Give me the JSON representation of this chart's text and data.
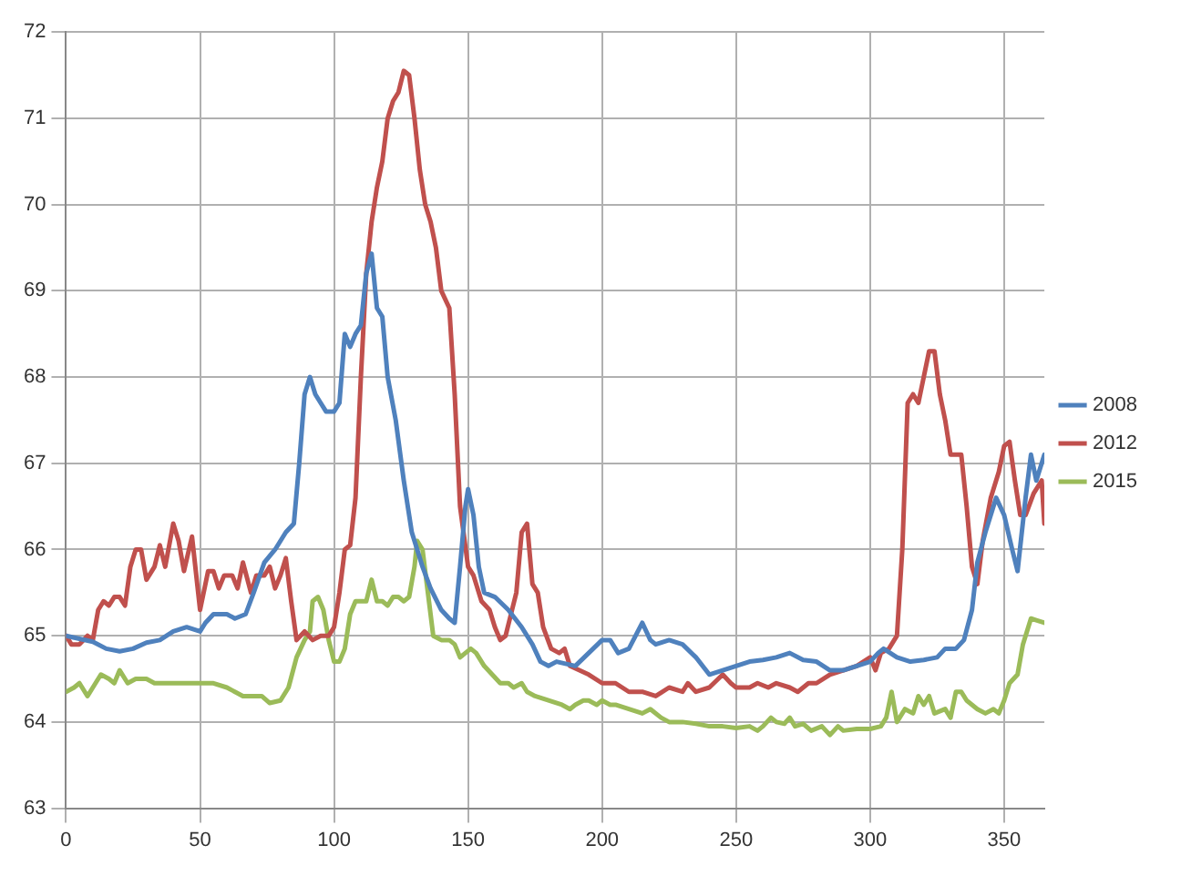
{
  "chart_data": {
    "type": "line",
    "xlim": [
      0,
      365
    ],
    "xticks": [
      0,
      50,
      100,
      150,
      200,
      250,
      300,
      350
    ],
    "ylim": [
      63,
      72
    ],
    "yticks": [
      63,
      64,
      65,
      66,
      67,
      68,
      69,
      70,
      71,
      72
    ],
    "grid": true,
    "legend": "right",
    "marker": "none",
    "line_style": "solid",
    "series": [
      {
        "name": "2008",
        "color": "#4f81bd",
        "x": [
          0,
          10,
          15,
          20,
          25,
          30,
          35,
          40,
          45,
          50,
          52,
          55,
          60,
          63,
          67,
          70,
          74,
          78,
          82,
          85,
          87,
          89,
          91,
          93,
          95,
          97,
          100,
          102,
          104,
          106,
          108,
          110,
          112,
          114,
          116,
          118,
          120,
          123,
          126,
          129,
          131,
          133,
          136,
          140,
          143,
          145,
          147,
          149,
          150,
          152,
          154,
          156,
          160,
          165,
          170,
          174,
          177,
          180,
          183,
          190,
          195,
          200,
          203,
          206,
          210,
          215,
          218,
          220,
          225,
          230,
          235,
          240,
          245,
          250,
          255,
          260,
          265,
          270,
          275,
          280,
          285,
          290,
          295,
          300,
          303,
          305,
          310,
          315,
          320,
          325,
          328,
          332,
          335,
          338,
          340,
          343,
          347,
          350,
          353,
          355,
          358,
          360,
          362,
          365
        ],
        "values": [
          65.0,
          64.93,
          64.85,
          64.82,
          64.85,
          64.92,
          64.95,
          65.05,
          65.1,
          65.05,
          65.15,
          65.25,
          65.25,
          65.2,
          65.25,
          65.5,
          65.85,
          66.0,
          66.2,
          66.3,
          67.0,
          67.8,
          68.0,
          67.8,
          67.7,
          67.6,
          67.6,
          67.7,
          68.5,
          68.35,
          68.5,
          68.6,
          69.2,
          69.43,
          68.8,
          68.7,
          68.0,
          67.5,
          66.8,
          66.2,
          66.0,
          65.8,
          65.55,
          65.3,
          65.2,
          65.15,
          65.8,
          66.5,
          66.7,
          66.4,
          65.8,
          65.5,
          65.45,
          65.3,
          65.1,
          64.9,
          64.7,
          64.65,
          64.7,
          64.65,
          64.8,
          64.95,
          64.95,
          64.8,
          64.85,
          65.15,
          64.95,
          64.9,
          64.95,
          64.9,
          64.75,
          64.55,
          64.6,
          64.65,
          64.7,
          64.72,
          64.75,
          64.8,
          64.72,
          64.7,
          64.6,
          64.6,
          64.65,
          64.7,
          64.8,
          64.85,
          64.75,
          64.7,
          64.72,
          64.75,
          64.85,
          64.85,
          64.95,
          65.3,
          65.85,
          66.2,
          66.6,
          66.4,
          66.0,
          65.75,
          66.6,
          67.1,
          66.8,
          67.1
        ]
      },
      {
        "name": "2012",
        "color": "#c0504d",
        "x": [
          0,
          2,
          5,
          8,
          10,
          12,
          14,
          16,
          18,
          20,
          22,
          24,
          26,
          28,
          30,
          33,
          35,
          37,
          40,
          42,
          44,
          47,
          50,
          53,
          55,
          57,
          59,
          62,
          64,
          66,
          69,
          71,
          74,
          76,
          78,
          80,
          82,
          84,
          86,
          89,
          92,
          95,
          98,
          100,
          102,
          104,
          106,
          108,
          110,
          112,
          114,
          116,
          118,
          120,
          122,
          124,
          126,
          128,
          130,
          132,
          134,
          136,
          138,
          140,
          143,
          145,
          147,
          150,
          152,
          155,
          158,
          160,
          162,
          164,
          166,
          168,
          170,
          172,
          174,
          176,
          178,
          181,
          184,
          186,
          188,
          195,
          200,
          205,
          210,
          215,
          220,
          225,
          230,
          232,
          235,
          240,
          245,
          248,
          250,
          255,
          258,
          262,
          265,
          270,
          273,
          277,
          280,
          285,
          290,
          295,
          300,
          302,
          304,
          307,
          310,
          312,
          314,
          316,
          318,
          320,
          322,
          324,
          326,
          328,
          330,
          334,
          336,
          338,
          340,
          342,
          345,
          348,
          350,
          352,
          354,
          356,
          358,
          361,
          364,
          365
        ],
        "values": [
          65.0,
          64.9,
          64.9,
          65.0,
          64.95,
          65.3,
          65.4,
          65.35,
          65.45,
          65.45,
          65.35,
          65.8,
          66.0,
          66.0,
          65.65,
          65.8,
          66.05,
          65.8,
          66.3,
          66.1,
          65.75,
          66.15,
          65.3,
          65.75,
          65.75,
          65.55,
          65.7,
          65.7,
          65.55,
          65.85,
          65.5,
          65.7,
          65.7,
          65.8,
          65.55,
          65.7,
          65.9,
          65.4,
          64.95,
          65.05,
          64.95,
          65.0,
          65.0,
          65.1,
          65.5,
          66.0,
          66.05,
          66.6,
          68.0,
          69.2,
          69.8,
          70.2,
          70.5,
          71.0,
          71.2,
          71.3,
          71.55,
          71.5,
          71.0,
          70.4,
          70.0,
          69.8,
          69.5,
          69.0,
          68.8,
          67.8,
          66.5,
          65.8,
          65.7,
          65.4,
          65.3,
          65.1,
          64.95,
          65.0,
          65.25,
          65.5,
          66.2,
          66.3,
          65.6,
          65.5,
          65.1,
          64.85,
          64.8,
          64.85,
          64.65,
          64.55,
          64.45,
          64.45,
          64.35,
          64.35,
          64.3,
          64.4,
          64.35,
          64.45,
          64.35,
          64.4,
          64.55,
          64.45,
          64.4,
          64.4,
          64.45,
          64.4,
          64.45,
          64.4,
          64.35,
          64.45,
          64.45,
          64.55,
          64.6,
          64.65,
          64.75,
          64.6,
          64.8,
          64.85,
          65.0,
          66.0,
          67.7,
          67.8,
          67.7,
          68.0,
          68.3,
          68.3,
          67.8,
          67.5,
          67.1,
          67.1,
          66.5,
          65.8,
          65.6,
          66.1,
          66.6,
          66.9,
          67.2,
          67.25,
          66.8,
          66.4,
          66.4,
          66.65,
          66.8,
          66.3
        ]
      },
      {
        "name": "2015",
        "color": "#9bbb59",
        "x": [
          0,
          3,
          5,
          8,
          10,
          13,
          16,
          18,
          20,
          23,
          26,
          30,
          33,
          36,
          40,
          45,
          50,
          55,
          60,
          63,
          66,
          70,
          73,
          76,
          80,
          83,
          86,
          89,
          91,
          92,
          94,
          96,
          98,
          100,
          102,
          104,
          106,
          108,
          110,
          112,
          114,
          116,
          118,
          120,
          122,
          124,
          126,
          128,
          130,
          131,
          133,
          135,
          137,
          140,
          143,
          145,
          147,
          149,
          151,
          153,
          156,
          159,
          162,
          165,
          167,
          170,
          172,
          175,
          180,
          185,
          188,
          190,
          193,
          195,
          198,
          200,
          203,
          205,
          210,
          215,
          218,
          222,
          225,
          230,
          235,
          240,
          245,
          250,
          255,
          258,
          260,
          263,
          265,
          268,
          270,
          272,
          275,
          278,
          282,
          285,
          288,
          290,
          295,
          300,
          304,
          306,
          308,
          310,
          313,
          316,
          318,
          320,
          322,
          324,
          328,
          330,
          332,
          334,
          336,
          340,
          343,
          346,
          348,
          350,
          352,
          355,
          357,
          360,
          362,
          365
        ],
        "values": [
          64.35,
          64.4,
          64.45,
          64.3,
          64.4,
          64.55,
          64.5,
          64.45,
          64.6,
          64.45,
          64.5,
          64.5,
          64.45,
          64.45,
          64.45,
          64.45,
          64.45,
          64.45,
          64.4,
          64.35,
          64.3,
          64.3,
          64.3,
          64.22,
          64.25,
          64.4,
          64.75,
          64.95,
          65.05,
          65.4,
          65.45,
          65.3,
          64.95,
          64.7,
          64.7,
          64.85,
          65.25,
          65.4,
          65.4,
          65.4,
          65.65,
          65.4,
          65.4,
          65.35,
          65.45,
          65.45,
          65.4,
          65.45,
          65.8,
          66.1,
          66.0,
          65.5,
          65.0,
          64.95,
          64.95,
          64.9,
          64.75,
          64.8,
          64.85,
          64.8,
          64.65,
          64.55,
          64.45,
          64.45,
          64.4,
          64.45,
          64.35,
          64.3,
          64.25,
          64.2,
          64.15,
          64.2,
          64.25,
          64.25,
          64.2,
          64.25,
          64.2,
          64.2,
          64.15,
          64.1,
          64.15,
          64.05,
          64.0,
          64.0,
          63.98,
          63.95,
          63.95,
          63.93,
          63.95,
          63.9,
          63.95,
          64.05,
          64.0,
          63.98,
          64.05,
          63.95,
          63.98,
          63.9,
          63.95,
          63.85,
          63.95,
          63.9,
          63.92,
          63.92,
          63.95,
          64.05,
          64.35,
          64.0,
          64.15,
          64.1,
          64.3,
          64.2,
          64.3,
          64.1,
          64.15,
          64.05,
          64.35,
          64.35,
          64.25,
          64.15,
          64.1,
          64.15,
          64.1,
          64.25,
          64.45,
          64.55,
          64.9,
          65.2,
          65.18,
          65.15
        ]
      }
    ]
  }
}
